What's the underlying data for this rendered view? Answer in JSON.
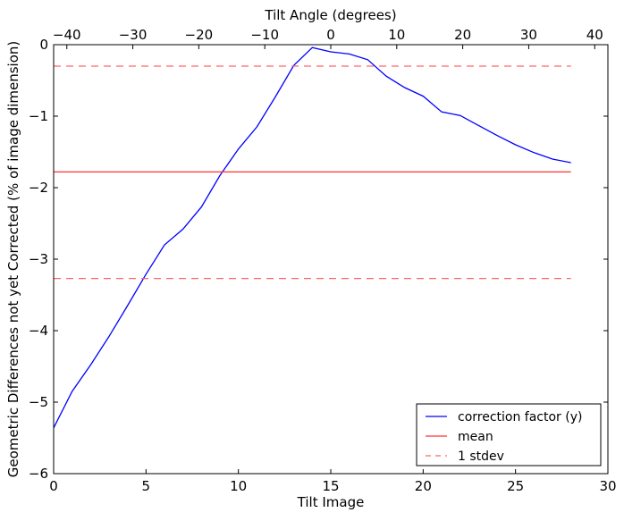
{
  "chart_data": {
    "type": "line",
    "xlabel": "Tilt Image",
    "ylabel": "Geometric Differences not yet Corrected (% of image dimension)",
    "top_xlabel": "Tilt Angle (degrees)",
    "xlim": [
      0,
      30
    ],
    "ylim": [
      -6,
      0
    ],
    "top_xlim": [
      -42,
      42
    ],
    "x_ticks": [
      0,
      5,
      10,
      15,
      20,
      25,
      30
    ],
    "y_ticks": [
      0,
      -1,
      -2,
      -3,
      -4,
      -5,
      -6
    ],
    "y_tick_labels": [
      "0",
      "−1",
      "−2",
      "−3",
      "−4",
      "−5",
      "−6"
    ],
    "top_x_ticks": [
      -40,
      -30,
      -20,
      -10,
      0,
      10,
      20,
      30,
      40
    ],
    "top_x_tick_labels": [
      "−40",
      "−30",
      "−20",
      "−10",
      "0",
      "10",
      "20",
      "30",
      "40"
    ],
    "grid": false,
    "legend_position": "bottom-right",
    "series": [
      {
        "name": "correction factor (y)",
        "color": "#0000ff",
        "style": "solid",
        "x": [
          0,
          1,
          2,
          3,
          4,
          5,
          6,
          7,
          8,
          9,
          10,
          11,
          12,
          13,
          14,
          15,
          16,
          17,
          18,
          19,
          20,
          21,
          22,
          23,
          24,
          25,
          26,
          27,
          28
        ],
        "values": [
          -5.36,
          -4.85,
          -4.48,
          -4.08,
          -3.65,
          -3.21,
          -2.8,
          -2.58,
          -2.27,
          -1.83,
          -1.46,
          -1.15,
          -0.73,
          -0.29,
          -0.04,
          -0.1,
          -0.13,
          -0.21,
          -0.44,
          -0.6,
          -0.72,
          -0.94,
          -0.99,
          -1.13,
          -1.27,
          -1.4,
          -1.51,
          -1.6,
          -1.65
        ]
      },
      {
        "name": "mean",
        "color": "#ff3333",
        "style": "solid",
        "x": [
          0,
          28
        ],
        "values": [
          -1.78,
          -1.78
        ]
      },
      {
        "name": "1 stdev",
        "color": "#ff6666",
        "style": "dashed",
        "x": [
          0,
          28
        ],
        "values": [
          -0.3,
          -0.3
        ],
        "lower": [
          -3.27,
          -3.27
        ]
      }
    ]
  }
}
